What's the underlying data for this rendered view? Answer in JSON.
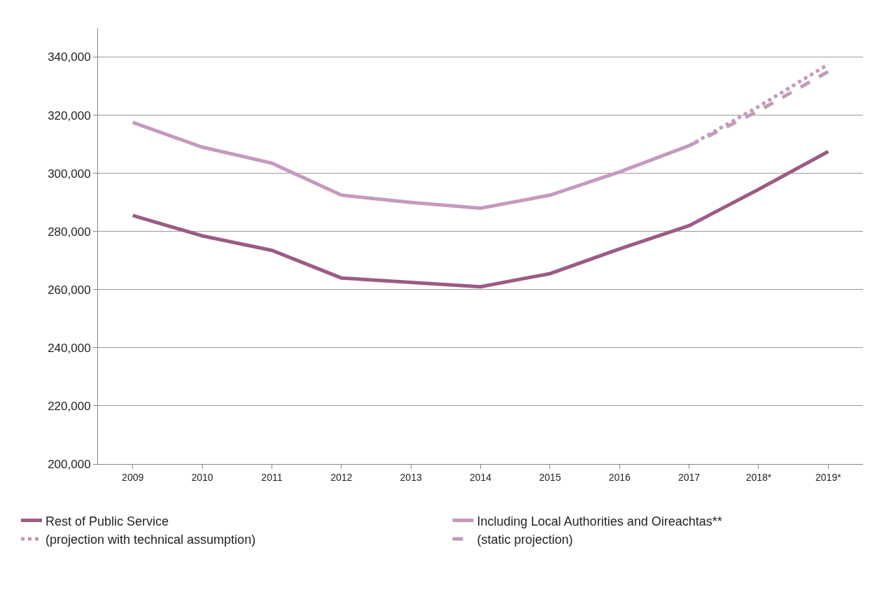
{
  "chart_data": {
    "type": "line",
    "categories": [
      "2009",
      "2010",
      "2011",
      "2012",
      "2013",
      "2014",
      "2015",
      "2016",
      "2017",
      "2018*",
      "2019*"
    ],
    "series": [
      {
        "name": "Rest of Public Service",
        "color": "#9b5b84",
        "line_style": "solid",
        "values": [
          285500,
          278500,
          273500,
          264000,
          262500,
          261000,
          265500,
          274000,
          282000,
          294500,
          307500
        ]
      },
      {
        "name": "Including Local Authorities and Oireachtas**",
        "color": "#c49abd",
        "line_style": "solid",
        "values": [
          317500,
          309000,
          303500,
          292500,
          290000,
          288000,
          292500,
          300500,
          309500,
          null,
          null
        ]
      },
      {
        "name": "(projection with technical assumption)",
        "color": "#c49abd",
        "line_style": "dotted",
        "values": [
          null,
          null,
          null,
          null,
          null,
          null,
          null,
          null,
          309500,
          323000,
          337500
        ]
      },
      {
        "name": "(static projection)",
        "color": "#c49abd",
        "line_style": "dashed",
        "values": [
          null,
          null,
          null,
          null,
          null,
          null,
          null,
          null,
          309500,
          321500,
          335000
        ]
      }
    ],
    "ylim": [
      200000,
      350000
    ],
    "yticks": [
      {
        "value": 200000,
        "label": "200,000"
      },
      {
        "value": 220000,
        "label": "220,000"
      },
      {
        "value": 240000,
        "label": "240,000"
      },
      {
        "value": 260000,
        "label": "260,000"
      },
      {
        "value": 280000,
        "label": "280,000"
      },
      {
        "value": 300000,
        "label": "300,000"
      },
      {
        "value": 320000,
        "label": "320,000"
      },
      {
        "value": 340000,
        "label": "340,000"
      }
    ],
    "grid": "y",
    "legend": "bottom",
    "marker": "none"
  }
}
